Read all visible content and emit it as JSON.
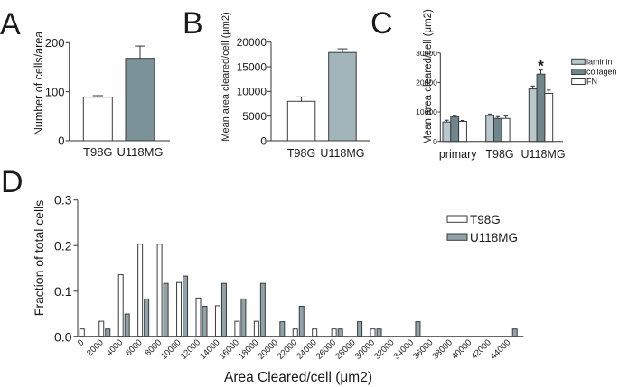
{
  "chart_data": [
    {
      "panel_label": "A",
      "type": "bar",
      "title": "",
      "xlabel": "",
      "ylabel": "Number of cells/area",
      "categories": [
        "T98G",
        "U118MG"
      ],
      "values": [
        89,
        168
      ],
      "errors": [
        3,
        25
      ],
      "colors": [
        "#ffffff",
        "#7b9398"
      ],
      "ylim": [
        0,
        200
      ],
      "yticks": [
        0,
        100,
        200
      ],
      "ytick_labels": [
        "0",
        "100",
        "200"
      ],
      "grid": false
    },
    {
      "panel_label": "B",
      "type": "bar",
      "title": "",
      "xlabel": "",
      "ylabel": "Mean area cleared/cell (μm2)",
      "categories": [
        "T98G",
        "U118MG"
      ],
      "values": [
        8000,
        17900
      ],
      "errors": [
        900,
        750
      ],
      "colors": [
        "#ffffff",
        "#a1b5ba"
      ],
      "ylim": [
        0,
        20000
      ],
      "yticks": [
        0,
        5000,
        10000,
        15000,
        20000
      ],
      "ytick_labels": [
        "0",
        "5000",
        "10000",
        "15000",
        "20000"
      ],
      "grid": false
    },
    {
      "panel_label": "C",
      "type": "bar",
      "title": "",
      "xlabel": "",
      "ylabel": "Mean area cleared/cell (μm2)",
      "categories": [
        "primary",
        "T98G",
        "U118MG"
      ],
      "series": [
        {
          "name": "laminin",
          "color": "#b8c8cd",
          "values": [
            6600,
            8800,
            17800
          ],
          "errors": [
            600,
            500,
            1000
          ]
        },
        {
          "name": "collagen",
          "color": "#6f878c",
          "values": [
            8300,
            7800,
            22800
          ],
          "errors": [
            400,
            600,
            1400
          ]
        },
        {
          "name": "FN",
          "color": "#ffffff",
          "values": [
            6800,
            7800,
            16300
          ],
          "errors": [
            300,
            800,
            1100
          ]
        }
      ],
      "ylim": [
        0,
        30000
      ],
      "yticks": [
        0,
        10000,
        20000,
        30000
      ],
      "ytick_labels": [
        "0",
        "10000",
        "20000",
        "30000"
      ],
      "annotations": [
        {
          "text": "*",
          "category": "U118MG",
          "series": "collagen"
        }
      ],
      "legend": "top-right",
      "grid": false
    },
    {
      "panel_label": "D",
      "type": "bar",
      "title": "",
      "xlabel": "Area Cleared/cell (μm2)",
      "ylabel": "Fraction of total cells",
      "categories": [
        "0",
        "2000",
        "4000",
        "6000",
        "8000",
        "10000",
        "12000",
        "14000",
        "16000",
        "18000",
        "20000",
        "22000",
        "24000",
        "26000",
        "28000",
        "30000",
        "32000",
        "34000",
        "36000",
        "38000",
        "40000",
        "42000",
        "44000"
      ],
      "series": [
        {
          "name": "T98G",
          "color": "#ffffff",
          "values": [
            0.017,
            0.034,
            0.136,
            0.203,
            0.203,
            0.119,
            0.085,
            0.068,
            0.034,
            0.034,
            0,
            0.017,
            0.017,
            0.017,
            0,
            0.017,
            0,
            0,
            0,
            0,
            0,
            0,
            0
          ]
        },
        {
          "name": "U118MG",
          "color": "#8fa4a9",
          "values": [
            0,
            0.017,
            0.05,
            0.083,
            0.117,
            0.133,
            0.067,
            0.117,
            0.083,
            0.117,
            0.033,
            0.067,
            0,
            0.017,
            0.033,
            0.017,
            0,
            0.033,
            0,
            0,
            0,
            0,
            0.017
          ]
        }
      ],
      "ylim": [
        0,
        0.3
      ],
      "yticks": [
        0,
        0.1,
        0.2,
        0.3
      ],
      "ytick_labels": [
        "0.0",
        "0.1",
        "0.2",
        "0.3"
      ],
      "legend": "top-right",
      "grid": false
    }
  ]
}
